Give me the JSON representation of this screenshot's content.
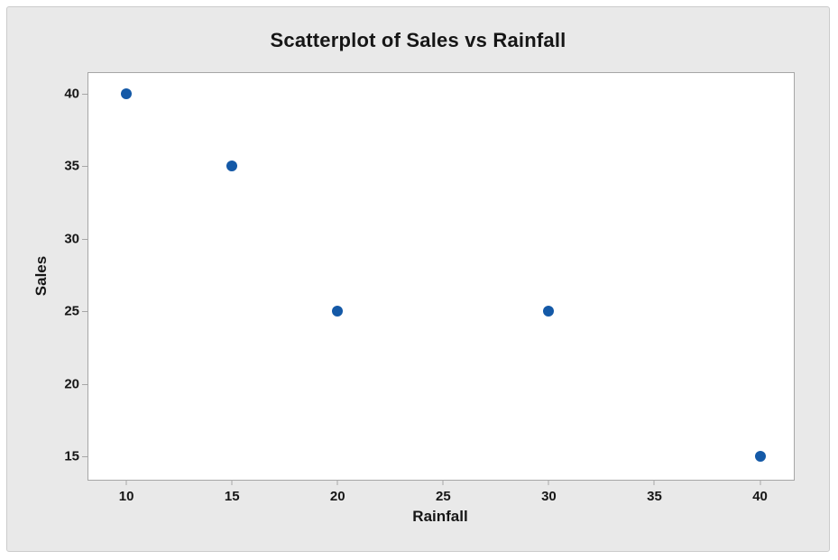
{
  "colors": {
    "canvas_bg": "#e9e9e9",
    "canvas_border": "#cbcbcb",
    "plot_bg": "#ffffff",
    "plot_border": "#a6a6a6",
    "point": "#1459a7",
    "text": "#161616"
  },
  "chart_data": {
    "type": "scatter",
    "title": "Scatterplot of Sales vs Rainfall",
    "xlabel": "Rainfall",
    "ylabel": "Sales",
    "points": [
      {
        "x": 10,
        "y": 40
      },
      {
        "x": 15,
        "y": 35
      },
      {
        "x": 20,
        "y": 25
      },
      {
        "x": 30,
        "y": 25
      },
      {
        "x": 40,
        "y": 15
      }
    ],
    "x_ticks": [
      10,
      15,
      20,
      25,
      30,
      35,
      40
    ],
    "y_ticks": [
      15,
      20,
      25,
      30,
      35,
      40
    ],
    "xlim": [
      8.2,
      41.6
    ],
    "ylim": [
      13.4,
      41.4
    ],
    "grid": false,
    "legend": "none"
  }
}
